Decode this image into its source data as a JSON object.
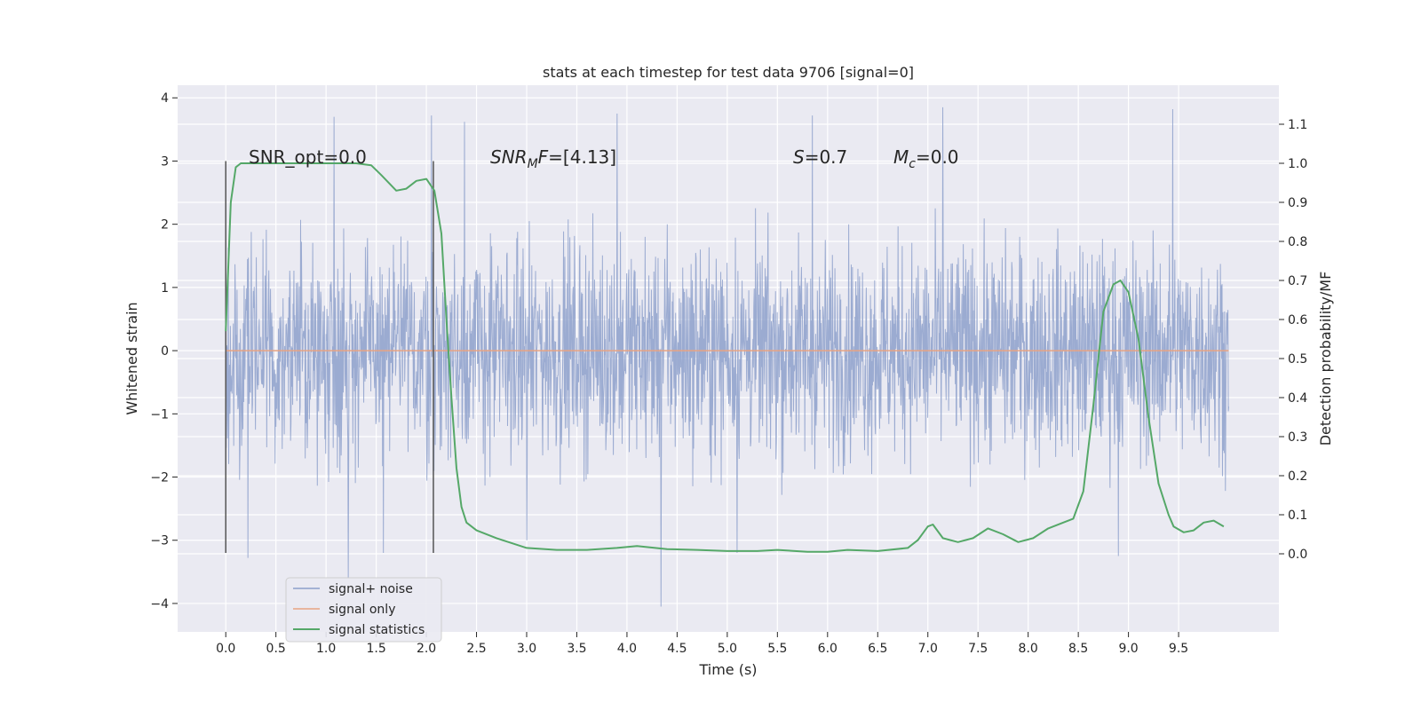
{
  "chart_data": {
    "type": "line",
    "title": "stats at each timestep for test data 9706 [signal=0]",
    "xlabel": "Time (s)",
    "ylabel": "Whitened strain",
    "y2label": "Detection probability/MF",
    "xlim": [
      -0.48,
      10.5
    ],
    "ylim": [
      -4.45,
      4.2
    ],
    "y2lim": [
      -0.2,
      1.2
    ],
    "xticks": [
      0.0,
      0.5,
      1.0,
      1.5,
      2.0,
      2.5,
      3.0,
      3.5,
      4.0,
      4.5,
      5.0,
      5.5,
      6.0,
      6.5,
      7.0,
      7.5,
      8.0,
      8.5,
      9.0,
      9.5
    ],
    "yticks": [
      -4,
      -3,
      -2,
      -1,
      0,
      1,
      2,
      3,
      4
    ],
    "y2ticks": [
      0.0,
      0.1,
      0.2,
      0.3,
      0.4,
      0.5,
      0.6,
      0.7,
      0.8,
      0.9,
      1.0,
      1.1
    ],
    "grid": true,
    "legend_position": "lower-left",
    "series": [
      {
        "name": "signal+ noise",
        "color": "#8da0cb",
        "axis": "left",
        "x_range": [
          0,
          10
        ],
        "envelope": {
          "typical_abs": 1.4,
          "peak_abs": 4.1
        },
        "peaks": [
          {
            "x": 0.22,
            "y": -3.28
          },
          {
            "x": 1.22,
            "y": -3.6
          },
          {
            "x": 1.57,
            "y": -3.2
          },
          {
            "x": 2.05,
            "y": 3.72
          },
          {
            "x": 2.38,
            "y": 3.62
          },
          {
            "x": 3.0,
            "y": -3.0
          },
          {
            "x": 3.9,
            "y": 3.75
          },
          {
            "x": 4.34,
            "y": -4.05
          },
          {
            "x": 5.1,
            "y": -3.2
          },
          {
            "x": 5.85,
            "y": 3.72
          },
          {
            "x": 7.15,
            "y": 3.85
          },
          {
            "x": 8.9,
            "y": -3.25
          },
          {
            "x": 9.44,
            "y": 3.82
          },
          {
            "x": 1.08,
            "y": 3.7
          }
        ]
      },
      {
        "name": "signal only",
        "color": "#e8a382",
        "axis": "left",
        "x": [
          0,
          10
        ],
        "y": [
          0,
          0
        ]
      },
      {
        "name": "signal statistics",
        "color": "#55a868",
        "axis": "right",
        "x": [
          0.0,
          0.05,
          0.1,
          0.15,
          0.25,
          0.4,
          0.7,
          1.0,
          1.3,
          1.45,
          1.55,
          1.7,
          1.8,
          1.9,
          2.0,
          2.08,
          2.15,
          2.2,
          2.25,
          2.3,
          2.35,
          2.4,
          2.5,
          2.7,
          3.0,
          3.3,
          3.6,
          3.9,
          4.1,
          4.4,
          4.7,
          5.0,
          5.3,
          5.5,
          5.8,
          6.0,
          6.2,
          6.5,
          6.8,
          6.9,
          7.0,
          7.05,
          7.15,
          7.3,
          7.45,
          7.6,
          7.75,
          7.9,
          8.05,
          8.2,
          8.35,
          8.45,
          8.55,
          8.65,
          8.75,
          8.85,
          8.92,
          9.0,
          9.1,
          9.2,
          9.3,
          9.4,
          9.45,
          9.55,
          9.65,
          9.75,
          9.85,
          9.95
        ],
        "y": [
          0.57,
          0.9,
          0.99,
          1.0,
          1.0,
          1.0,
          1.0,
          1.0,
          1.0,
          0.995,
          0.97,
          0.93,
          0.935,
          0.955,
          0.96,
          0.93,
          0.82,
          0.6,
          0.4,
          0.22,
          0.12,
          0.08,
          0.06,
          0.04,
          0.015,
          0.01,
          0.01,
          0.015,
          0.02,
          0.012,
          0.01,
          0.007,
          0.007,
          0.01,
          0.005,
          0.005,
          0.01,
          0.007,
          0.015,
          0.035,
          0.07,
          0.075,
          0.04,
          0.03,
          0.04,
          0.065,
          0.05,
          0.03,
          0.04,
          0.065,
          0.08,
          0.09,
          0.16,
          0.38,
          0.62,
          0.69,
          0.7,
          0.67,
          0.55,
          0.35,
          0.18,
          0.1,
          0.07,
          0.055,
          0.06,
          0.08,
          0.085,
          0.07
        ]
      }
    ],
    "vertical_lines": [
      {
        "x": 0.0,
        "y_range": [
          -3.2,
          3.0
        ],
        "color": "#555555"
      },
      {
        "x": 2.07,
        "y_range": [
          -3.2,
          3.0
        ],
        "color": "#555555"
      }
    ],
    "annotations": {
      "snr_opt": "SNR_opt=0.0",
      "snr_mf_name": "SNR",
      "snr_mf_sub": "M",
      "snr_mf_tail": "F",
      "snr_mf_value": "=[4.13]",
      "s_name": "S",
      "s_value": "=0.7",
      "mc_name": "M",
      "mc_sub": "c",
      "mc_value": "=0.0"
    }
  }
}
